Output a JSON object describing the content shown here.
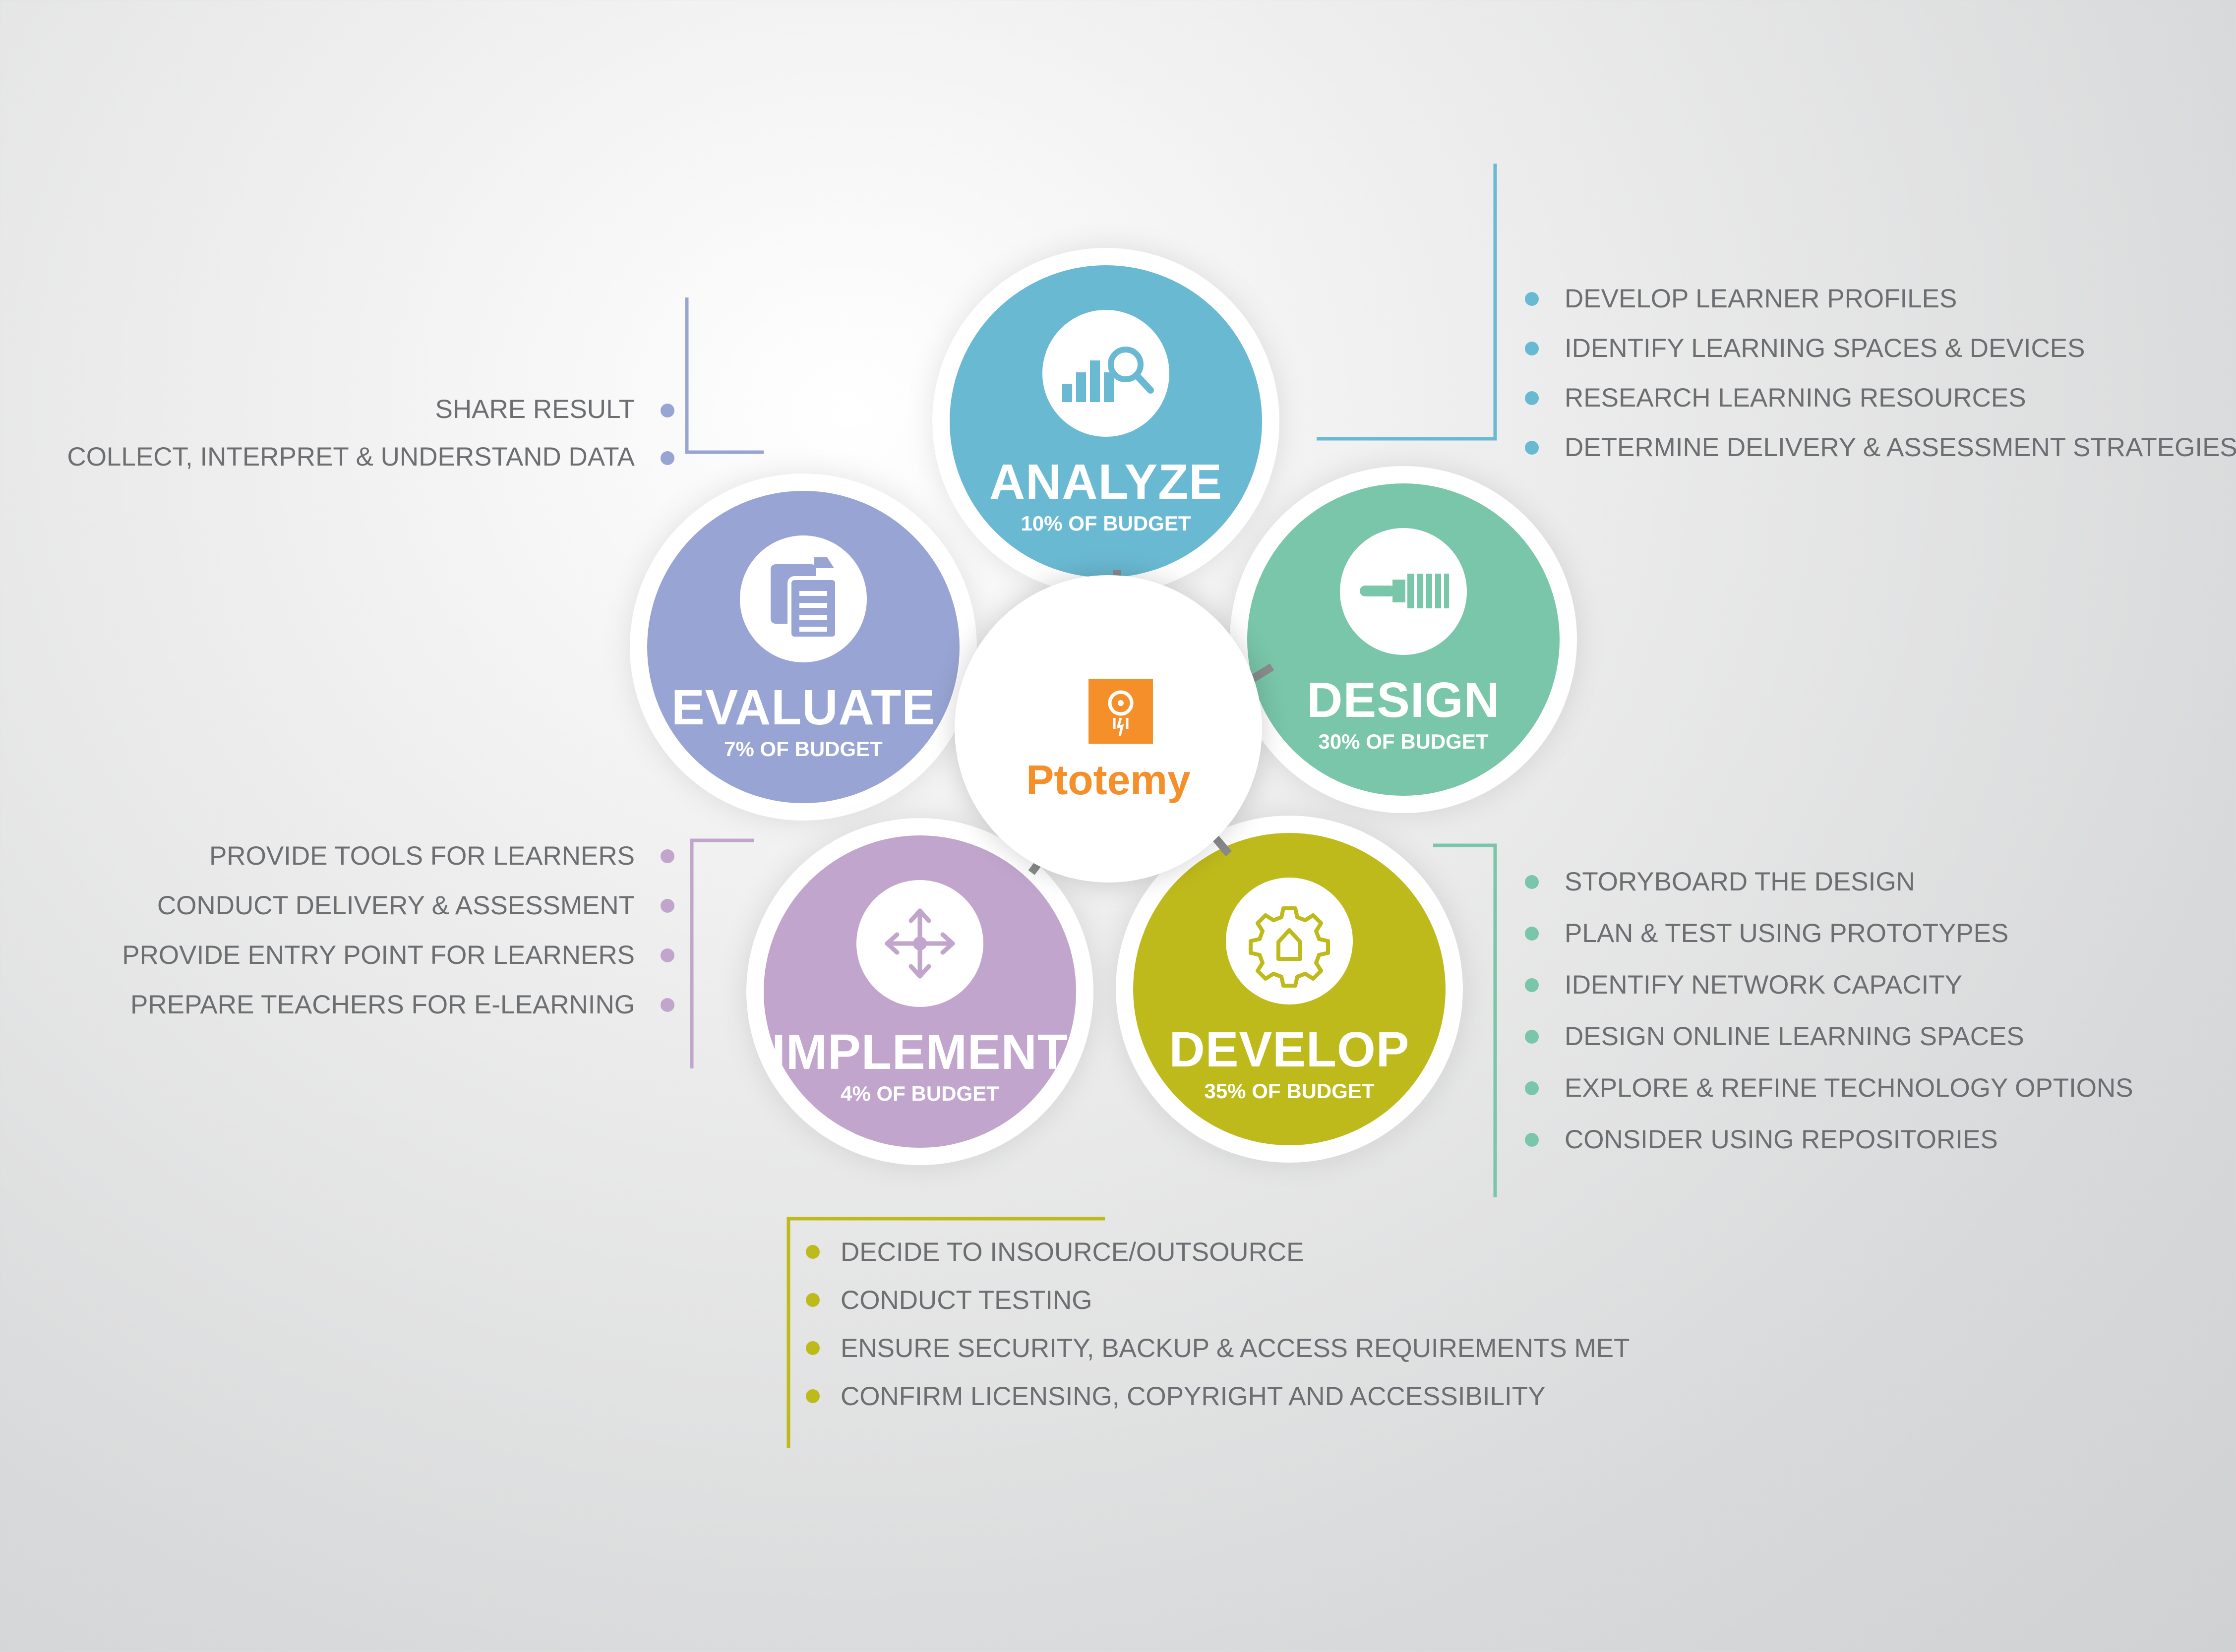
{
  "center": {
    "brand": "Ptotemy",
    "logo_icon": "totem-logo-icon",
    "color": "#f58f2a"
  },
  "phases": {
    "analyze": {
      "name": "ANALYZE",
      "budget": "10% OF BUDGET",
      "icon": "chart-magnifier-icon",
      "color": "#6ab9d3"
    },
    "design": {
      "name": "DESIGN",
      "budget": "30% OF BUDGET",
      "icon": "paintbrush-icon",
      "color": "#79c6aa"
    },
    "develop": {
      "name": "DEVELOP",
      "budget": "35% OF BUDGET",
      "icon": "gear-icon",
      "color": "#bfba1c"
    },
    "implement": {
      "name": "IMPLEMENT",
      "budget": "4% OF BUDGET",
      "icon": "move-arrows-icon",
      "color": "#c1a5cd"
    },
    "evaluate": {
      "name": "EVALUATE",
      "budget": "7% OF BUDGET",
      "icon": "clipboard-icon",
      "color": "#98a5d4"
    }
  },
  "lists": {
    "analyze": [
      "DEVELOP LEARNER PROFILES",
      "IDENTIFY LEARNING SPACES & DEVICES",
      "RESEARCH LEARNING RESOURCES",
      "DETERMINE DELIVERY & ASSESSMENT STRATEGIES"
    ],
    "evaluate": [
      "SHARE RESULT",
      "COLLECT, INTERPRET & UNDERSTAND DATA"
    ],
    "implement_left": [
      "PROVIDE TOOLS FOR LEARNERS",
      "CONDUCT DELIVERY & ASSESSMENT",
      "PROVIDE ENTRY POINT FOR LEARNERS",
      "PREPARE TEACHERS FOR E-LEARNING"
    ],
    "develop": [
      "STORYBOARD THE DESIGN",
      "PLAN & TEST USING PROTOTYPES",
      "IDENTIFY NETWORK CAPACITY",
      "DESIGN ONLINE LEARNING SPACES",
      "EXPLORE & REFINE TECHNOLOGY OPTIONS",
      "CONSIDER USING REPOSITORIES"
    ],
    "bottom": [
      "DECIDE TO INSOURCE/OUTSOURCE",
      "CONDUCT TESTING",
      "ENSURE SECURITY, BACKUP & ACCESS REQUIREMENTS MET",
      "CONFIRM LICENSING, COPYRIGHT AND ACCESSIBILITY"
    ]
  }
}
